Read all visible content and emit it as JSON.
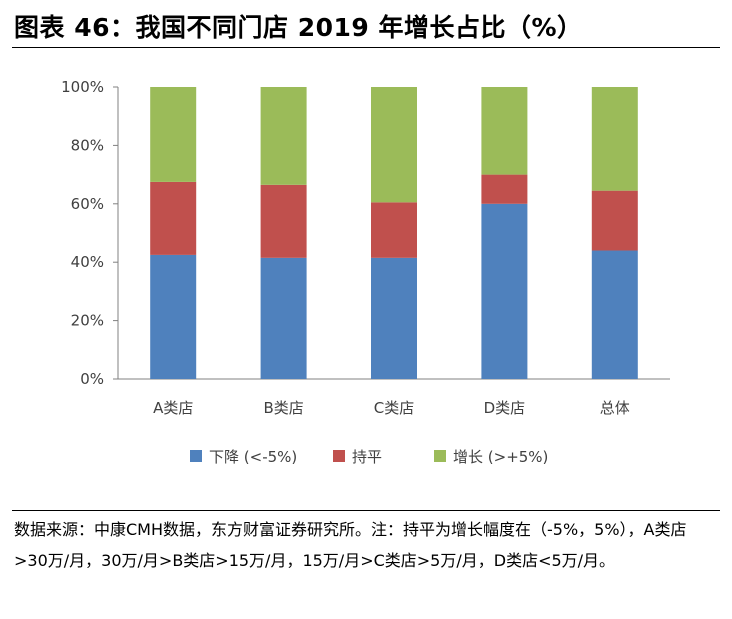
{
  "title": "图表 46：我国不同门店 2019 年增长占比（%）",
  "source_text": "数据来源：中康CMH数据，东方财富证券研究所。注：持平为增长幅度在（-5%，5%），A类店>30万/月，30万/月>B类店>15万/月，15万/月>C类店>5万/月，D类店<5万/月。",
  "colors": {
    "decline": "#4f81bd",
    "flat": "#c0504d",
    "growth": "#9bbb59",
    "axis": "#808080"
  },
  "chart_data": {
    "type": "bar",
    "stacked": true,
    "categories": [
      "A类店",
      "B类店",
      "C类店",
      "D类店",
      "总体"
    ],
    "series": [
      {
        "name": "下降 (<-5%)",
        "values": [
          42.5,
          41.5,
          41.5,
          60,
          44
        ]
      },
      {
        "name": "持平",
        "values": [
          25,
          25,
          19,
          10,
          20.5
        ]
      },
      {
        "name": "增长 (>+5%)",
        "values": [
          32.5,
          33.5,
          39.5,
          30,
          35.5
        ]
      }
    ],
    "ylim": [
      0,
      100
    ],
    "yticks": [
      "0%",
      "20%",
      "40%",
      "60%",
      "80%",
      "100%"
    ],
    "legend_position": "bottom",
    "grid": false
  }
}
